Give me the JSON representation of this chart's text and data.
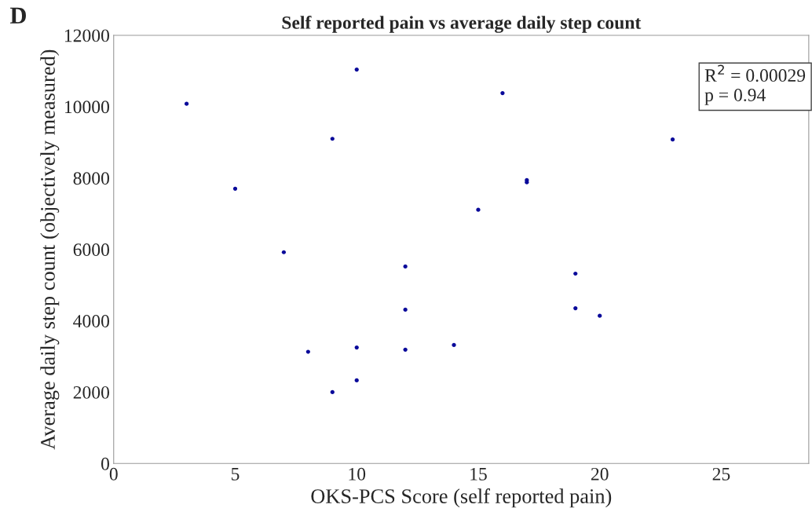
{
  "chart_data": {
    "type": "scatter",
    "title": "Self reported pain vs average daily step count",
    "xlabel": "OKS-PCS Score (self reported pain)",
    "ylabel": "Average daily step count (objectively measured)",
    "x": [
      3,
      5,
      7,
      8,
      9,
      9,
      10,
      10,
      10,
      12,
      12,
      12,
      14,
      15,
      16,
      17,
      17,
      19,
      19,
      20,
      23
    ],
    "series": [
      {
        "color": "#0a0a9a",
        "values": [
          10080,
          7700,
          5920,
          3130,
          9100,
          2000,
          11040,
          3250,
          2330,
          5520,
          4310,
          3190,
          3320,
          7110,
          10380,
          7940,
          7880,
          5320,
          4350,
          4140,
          9080
        ]
      }
    ],
    "xlim": [
      0,
      28.6
    ],
    "xticks": [
      0,
      5,
      10,
      15,
      20,
      25
    ],
    "ylim": [
      0,
      12000
    ],
    "yticks": [
      0,
      2000,
      4000,
      6000,
      8000,
      10000,
      12000
    ],
    "grid": false,
    "marker": "circle",
    "annotations": [
      "D",
      "R$^{2}$ = 0.00029\np = 0.94"
    ]
  }
}
